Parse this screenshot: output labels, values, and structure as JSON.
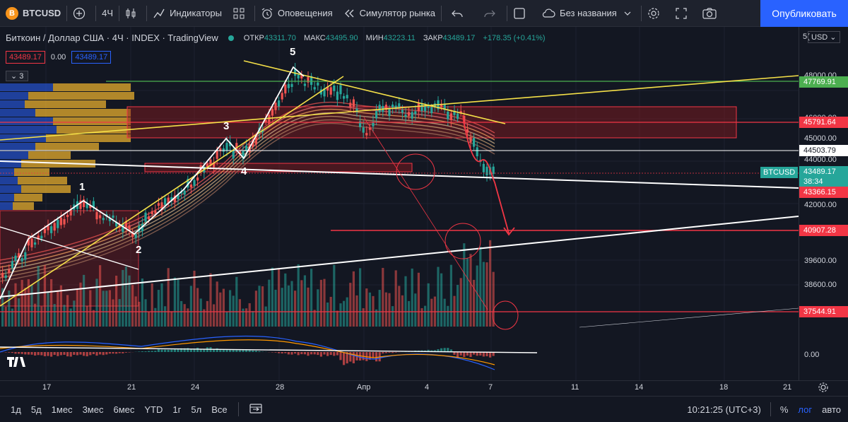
{
  "topbar": {
    "symbol": "BTCUSD",
    "symbol_logo": "B",
    "interval": "4Ч",
    "indicators": "Индикаторы",
    "alerts": "Оповещения",
    "replay": "Симулятор рынка",
    "layout_name": "Без названия",
    "publish": "Опубликовать"
  },
  "legend": {
    "title": "Биткоин / Доллар США · 4Ч · INDEX · TradingView",
    "open_label": "ОТКР",
    "open": "43311.70",
    "high_label": "МАКС",
    "high": "43495.90",
    "low_label": "МИН",
    "low": "43223.11",
    "close_label": "ЗАКР",
    "close": "43489.17",
    "change": "+178.35 (+0.41%)",
    "bid": "43489.17",
    "spread": "0.00",
    "ask": "43489.17",
    "indicator_count": "3"
  },
  "price_axis": {
    "currency": "USD",
    "top_partial": "5(",
    "ticks": [
      "48000.00",
      "46000.00",
      "45000.00",
      "44000.00",
      "42000.00",
      "39600.00",
      "38600.00"
    ],
    "zero": "0.00"
  },
  "price_labels": [
    {
      "text": "47769.91",
      "color": "#4caf50"
    },
    {
      "text": "45791.64",
      "color": "#f23645"
    },
    {
      "text": "44503.79",
      "color": "#ffffff"
    },
    {
      "text": "43489.17",
      "color": "#26a69a"
    },
    {
      "text": "38:34",
      "color": "#26a69a"
    },
    {
      "text": "43366.15",
      "color": "#f23645"
    },
    {
      "text": "40907.28",
      "color": "#f23645"
    },
    {
      "text": "37544.91",
      "color": "#f23645"
    }
  ],
  "symbol_badge": "BTCUSD",
  "waves": [
    "1",
    "2",
    "3",
    "4",
    "5"
  ],
  "time_axis": [
    "17",
    "21",
    "24",
    "28",
    "Апр",
    "4",
    "7",
    "11",
    "14",
    "18",
    "21"
  ],
  "bottombar": {
    "ranges": [
      "1д",
      "5д",
      "1мес",
      "3мес",
      "6мес",
      "YTD",
      "1г",
      "5л",
      "Все"
    ],
    "time": "10:21:25 (UTC+3)",
    "percent": "%",
    "log": "лог",
    "auto": "авто"
  },
  "colors": {
    "bg": "#131722",
    "up": "#26a69a",
    "down": "#ef5350",
    "accent": "#2962ff"
  }
}
